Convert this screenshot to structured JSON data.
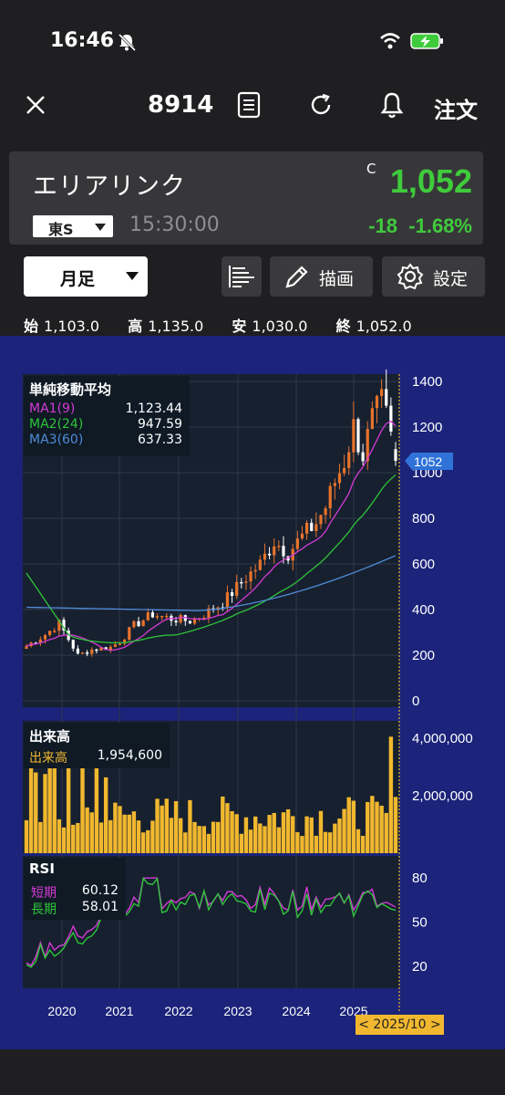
{
  "status_bar": {
    "time": "16:46"
  },
  "header": {
    "ticker": "8914",
    "order_label": "注文"
  },
  "quote": {
    "name": "エリアリンク",
    "price_flag": "C",
    "price": "1,052",
    "market": "東S",
    "time": "15:30:00",
    "change": "-18",
    "change_pct": "-1.68%",
    "up_color": "#3fcb3b"
  },
  "controls": {
    "period": "月足",
    "draw_label": "描画",
    "settings_label": "設定"
  },
  "ohlc": {
    "open_label": "始",
    "open": "1,103.0",
    "high_label": "高",
    "high": "1,135.0",
    "low_label": "安",
    "low": "1,030.0",
    "close_label": "終",
    "close": "1,052.0"
  },
  "price_panel": {
    "title": "単純移動平均",
    "ma": [
      {
        "label": "MA1(9)",
        "value": "1,123.44",
        "color": "#d43ad6"
      },
      {
        "label": "MA2(24)",
        "value": "947.59",
        "color": "#2ec43a"
      },
      {
        "label": "MA3(60)",
        "value": "637.33",
        "color": "#4f8bd8"
      }
    ],
    "current_label": "1052"
  },
  "volume_panel": {
    "title": "出来高",
    "series_label": "出来高",
    "value": "1,954,600"
  },
  "rsi_panel": {
    "title": "RSI",
    "short_label": "短期",
    "short_value": "60.12",
    "long_label": "長期",
    "long_value": "58.01"
  },
  "date_tag": "< 2025/10 >",
  "chart_data": [
    {
      "type": "candlestick",
      "title": "単純移動平均",
      "y_ticks": [
        0,
        200,
        400,
        600,
        800,
        1000,
        1200,
        1400
      ],
      "ylim": [
        0,
        1400
      ],
      "x_tick_labels": [
        "2020",
        "2021",
        "2022",
        "2023",
        "2024",
        "2025"
      ],
      "last_close": 1052,
      "last_ohlc": {
        "open": 1103.0,
        "high": 1135.0,
        "low": 1030.0,
        "close": 1052.0
      },
      "series": [
        {
          "name": "MA1(9)",
          "last": 1123.44
        },
        {
          "name": "MA2(24)",
          "last": 947.59
        },
        {
          "name": "MA3(60)",
          "last": 637.33
        }
      ]
    },
    {
      "type": "bar",
      "title": "出来高",
      "y_ticks": [
        2000000,
        4000000
      ],
      "y_tick_labels": [
        "2,000,000",
        "4,000,000"
      ],
      "ylim": [
        0,
        4600000
      ],
      "last_value": 1954600
    },
    {
      "type": "line",
      "title": "RSI",
      "y_ticks": [
        20,
        50,
        80
      ],
      "series": [
        {
          "name": "短期",
          "last": 60.12
        },
        {
          "name": "長期",
          "last": 58.01
        }
      ]
    }
  ]
}
